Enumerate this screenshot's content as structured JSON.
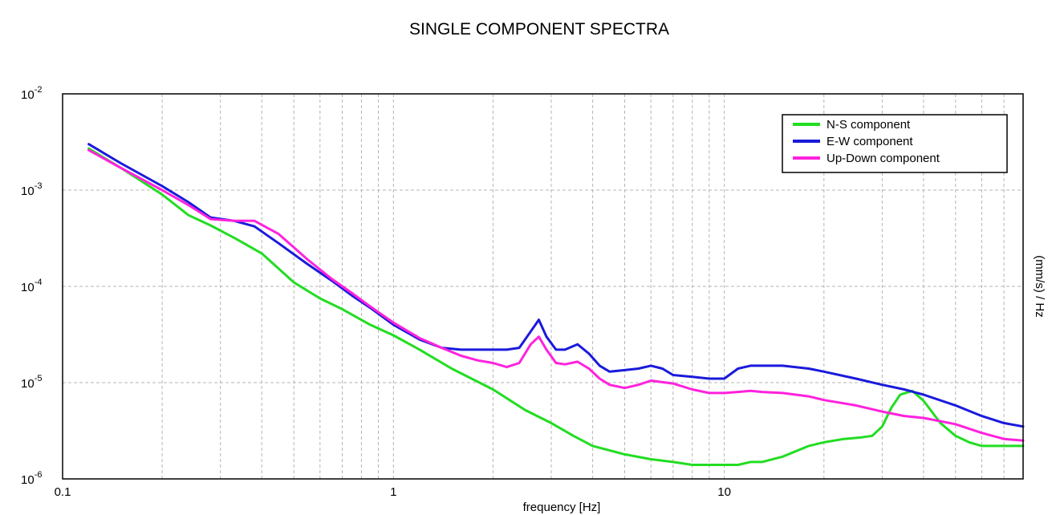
{
  "chart_data": {
    "type": "line",
    "title": "SINGLE COMPONENT SPECTRA",
    "xlabel": "frequency [Hz]",
    "ylabel": "(mm/s) / Hz",
    "x_scale": "log",
    "y_scale": "log",
    "xlim": [
      0.1,
      80
    ],
    "ylim": [
      1e-06,
      0.01
    ],
    "grid": true,
    "legend_position": "top-right",
    "x_ticks": [
      {
        "value": 0.1,
        "label": "0.1"
      },
      {
        "value": 1,
        "label": "1"
      },
      {
        "value": 10,
        "label": "10"
      }
    ],
    "y_ticks": [
      {
        "value": 0.01,
        "base": "10",
        "exp": "-2"
      },
      {
        "value": 0.001,
        "base": "10",
        "exp": "-3"
      },
      {
        "value": 0.0001,
        "base": "10",
        "exp": "-4"
      },
      {
        "value": 1e-05,
        "base": "10",
        "exp": "-5"
      },
      {
        "value": 1e-06,
        "base": "10",
        "exp": "-6"
      }
    ],
    "series": [
      {
        "name": "N-S component",
        "color": "#22dd22",
        "x": [
          0.12,
          0.15,
          0.2,
          0.24,
          0.28,
          0.33,
          0.4,
          0.5,
          0.6,
          0.7,
          0.85,
          1.0,
          1.2,
          1.5,
          2.0,
          2.5,
          3.0,
          3.5,
          4.0,
          5.0,
          6.0,
          7.0,
          8.0,
          9.0,
          10.0,
          11.0,
          12.0,
          13.0,
          15.0,
          18.0,
          20.0,
          23.0,
          26.0,
          28.0,
          30.0,
          32.0,
          34.0,
          37.0,
          40.0,
          45.0,
          50.0,
          55.0,
          60.0,
          70.0,
          80.0
        ],
        "y": [
          0.0027,
          0.0017,
          0.0009,
          0.00055,
          0.00043,
          0.00032,
          0.00022,
          0.00011,
          7.5e-05,
          5.8e-05,
          4e-05,
          3.1e-05,
          2.2e-05,
          1.4e-05,
          8.5e-06,
          5.2e-06,
          3.8e-06,
          2.8e-06,
          2.2e-06,
          1.8e-06,
          1.6e-06,
          1.5e-06,
          1.4e-06,
          1.4e-06,
          1.4e-06,
          1.4e-06,
          1.5e-06,
          1.5e-06,
          1.7e-06,
          2.2e-06,
          2.4e-06,
          2.6e-06,
          2.7e-06,
          2.8e-06,
          3.5e-06,
          5.5e-06,
          7.5e-06,
          8.2e-06,
          6.5e-06,
          3.8e-06,
          2.8e-06,
          2.4e-06,
          2.2e-06,
          2.2e-06,
          2.2e-06
        ]
      },
      {
        "name": "E-W component",
        "color": "#1a1adc",
        "x": [
          0.12,
          0.15,
          0.2,
          0.24,
          0.28,
          0.33,
          0.38,
          0.45,
          0.55,
          0.65,
          0.75,
          0.85,
          1.0,
          1.2,
          1.4,
          1.6,
          1.8,
          2.0,
          2.2,
          2.4,
          2.6,
          2.75,
          2.9,
          3.1,
          3.3,
          3.6,
          3.9,
          4.2,
          4.5,
          5.0,
          5.5,
          6.0,
          6.5,
          7.0,
          8.0,
          9.0,
          10.0,
          11.0,
          12.0,
          13.0,
          15.0,
          18.0,
          20.0,
          25.0,
          30.0,
          35.0,
          40.0,
          50.0,
          60.0,
          70.0,
          80.0
        ],
        "y": [
          0.003,
          0.0019,
          0.0011,
          0.00075,
          0.00052,
          0.00048,
          0.00042,
          0.00028,
          0.00017,
          0.000115,
          8e-05,
          6e-05,
          4e-05,
          2.8e-05,
          2.3e-05,
          2.2e-05,
          2.2e-05,
          2.2e-05,
          2.2e-05,
          2.3e-05,
          3.4e-05,
          4.5e-05,
          3e-05,
          2.2e-05,
          2.2e-05,
          2.5e-05,
          2e-05,
          1.5e-05,
          1.3e-05,
          1.35e-05,
          1.4e-05,
          1.5e-05,
          1.4e-05,
          1.2e-05,
          1.15e-05,
          1.1e-05,
          1.1e-05,
          1.4e-05,
          1.5e-05,
          1.5e-05,
          1.5e-05,
          1.4e-05,
          1.3e-05,
          1.1e-05,
          9.5e-06,
          8.5e-06,
          7.5e-06,
          5.8e-06,
          4.5e-06,
          3.8e-06,
          3.5e-06
        ]
      },
      {
        "name": "Up-Down component",
        "color": "#ff22dd",
        "x": [
          0.12,
          0.15,
          0.2,
          0.24,
          0.28,
          0.33,
          0.38,
          0.45,
          0.55,
          0.65,
          0.75,
          0.85,
          1.0,
          1.2,
          1.4,
          1.6,
          1.8,
          2.0,
          2.2,
          2.4,
          2.6,
          2.75,
          2.9,
          3.1,
          3.3,
          3.6,
          3.9,
          4.2,
          4.5,
          5.0,
          5.5,
          6.0,
          7.0,
          8.0,
          9.0,
          10.0,
          11.0,
          12.0,
          13.0,
          15.0,
          18.0,
          20.0,
          25.0,
          30.0,
          35.0,
          40.0,
          50.0,
          60.0,
          70.0,
          80.0
        ],
        "y": [
          0.0026,
          0.0017,
          0.001,
          0.0007,
          0.0005,
          0.00048,
          0.00048,
          0.00035,
          0.00019,
          0.00012,
          8.5e-05,
          6.2e-05,
          4.2e-05,
          2.9e-05,
          2.3e-05,
          1.9e-05,
          1.7e-05,
          1.6e-05,
          1.45e-05,
          1.6e-05,
          2.5e-05,
          3e-05,
          2.2e-05,
          1.6e-05,
          1.55e-05,
          1.65e-05,
          1.4e-05,
          1.1e-05,
          9.5e-06,
          8.8e-06,
          9.5e-06,
          1.05e-05,
          9.8e-06,
          8.5e-06,
          7.8e-06,
          7.8e-06,
          8e-06,
          8.2e-06,
          8e-06,
          7.8e-06,
          7.2e-06,
          6.6e-06,
          5.8e-06,
          5e-06,
          4.5e-06,
          4.3e-06,
          3.7e-06,
          3e-06,
          2.6e-06,
          2.5e-06
        ]
      }
    ]
  }
}
